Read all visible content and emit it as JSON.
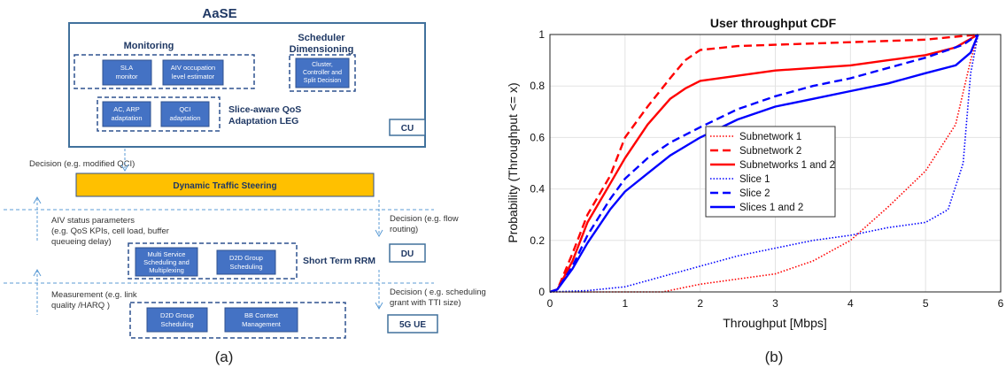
{
  "diagram": {
    "title": "AaSE",
    "monitoring": {
      "heading": "Monitoring",
      "sla_box": [
        "SLA",
        "monitor"
      ],
      "aiv_box": [
        "AIV occupation",
        "level estimator"
      ]
    },
    "scheduler": {
      "heading": [
        "Scheduler",
        "Dimensioning"
      ],
      "box": [
        "Cluster,",
        "Controller and",
        "Split Decision"
      ]
    },
    "qos": {
      "ac_arp_box": [
        "AC, ARP",
        "adaptation"
      ],
      "qci_box": [
        "QCI",
        "adaptation"
      ],
      "label": [
        "Slice-aware QoS",
        "Adaptation LEG"
      ]
    },
    "cu_label": "CU",
    "decision_qci": "Decision (e.g. modified QCI)",
    "dts_label": "Dynamic Traffic Steering",
    "aiv_status": [
      "AIV status parameters",
      "(e.g. QoS KPIs, cell load, buffer",
      "queueing delay)"
    ],
    "decision_flow": [
      "Decision (e.g. flow",
      "routing)"
    ],
    "rrm": {
      "multi_service_box": [
        "Multi Service",
        "Scheduling and",
        "Multiplexing"
      ],
      "d2d_box": [
        "D2D Group",
        "Scheduling"
      ],
      "label": "Short Term RRM"
    },
    "du_label": "DU",
    "measurement": [
      "Measurement (e.g. link",
      "quality /HARQ )"
    ],
    "decision_sched": [
      "Decision ( e.g. scheduling",
      "grant with TTI size)"
    ],
    "ue": {
      "d2d_box": [
        "D2D Group",
        "Scheduling"
      ],
      "bb_box": [
        "BB Context",
        "Management"
      ],
      "label": "5G UE"
    },
    "caption": "(a)"
  },
  "chart_caption": "(b)",
  "colors": {
    "box_blue": "#4472c4",
    "box_border": "#2f528f",
    "frame": "#41719c",
    "text_dark": "#1f3864",
    "dts_fill": "#ffc000",
    "red": "#ff0000",
    "blue": "#0000ff"
  },
  "chart_data": {
    "type": "line",
    "title": "User throughput CDF",
    "xlabel": "Throughput [Mbps]",
    "ylabel": "Probability (Throughput <= x)",
    "xlim": [
      0,
      6
    ],
    "ylim": [
      0,
      1
    ],
    "xticks": [
      0,
      1,
      2,
      3,
      4,
      5,
      6
    ],
    "yticks": [
      0,
      0.2,
      0.4,
      0.6,
      0.8,
      1
    ],
    "xtick_labels": [
      "0",
      "1",
      "2",
      "3",
      "4",
      "5",
      "6"
    ],
    "ytick_labels": [
      "0",
      "0.2",
      "0.4",
      "0.6",
      "0.8",
      "1"
    ],
    "grid": true,
    "legend": "center",
    "series": [
      {
        "name": "Subnetwork 1",
        "color": "#ff0000",
        "style": "dotted",
        "x": [
          0,
          1.0,
          1.5,
          2.0,
          2.5,
          3.0,
          3.5,
          4.0,
          4.5,
          5.0,
          5.4,
          5.6,
          5.7
        ],
        "y": [
          0,
          0.0,
          0.0,
          0.03,
          0.05,
          0.07,
          0.12,
          0.2,
          0.33,
          0.47,
          0.65,
          0.9,
          1.0
        ]
      },
      {
        "name": "Subnetwork 2",
        "color": "#ff0000",
        "style": "dashed",
        "x": [
          0,
          0.1,
          0.3,
          0.5,
          0.8,
          1.0,
          1.3,
          1.6,
          1.8,
          2.0,
          2.5,
          3.0,
          4.0,
          5.0,
          5.7
        ],
        "y": [
          0,
          0.01,
          0.15,
          0.3,
          0.45,
          0.6,
          0.72,
          0.83,
          0.9,
          0.94,
          0.955,
          0.96,
          0.97,
          0.98,
          1.0
        ]
      },
      {
        "name": "Subnetworks 1 and 2",
        "color": "#ff0000",
        "style": "solid",
        "x": [
          0,
          0.1,
          0.3,
          0.5,
          0.8,
          1.0,
          1.3,
          1.6,
          1.8,
          2.0,
          2.5,
          3.0,
          4.0,
          4.5,
          5.0,
          5.4,
          5.7
        ],
        "y": [
          0,
          0.01,
          0.12,
          0.27,
          0.42,
          0.52,
          0.65,
          0.75,
          0.79,
          0.82,
          0.84,
          0.86,
          0.88,
          0.9,
          0.92,
          0.95,
          1.0
        ]
      },
      {
        "name": "Slice 1",
        "color": "#0000ff",
        "style": "dotted",
        "x": [
          0,
          0.5,
          1.0,
          1.5,
          2.0,
          2.5,
          3.0,
          3.5,
          4.0,
          4.5,
          5.0,
          5.3,
          5.5,
          5.6,
          5.7
        ],
        "y": [
          0,
          0.005,
          0.02,
          0.06,
          0.1,
          0.14,
          0.17,
          0.2,
          0.22,
          0.25,
          0.27,
          0.32,
          0.5,
          0.85,
          1.0
        ]
      },
      {
        "name": "Slice 2",
        "color": "#0000ff",
        "style": "dashed",
        "x": [
          0,
          0.1,
          0.3,
          0.5,
          0.8,
          1.0,
          1.3,
          1.6,
          2.0,
          2.5,
          3.0,
          3.5,
          4.0,
          4.5,
          5.0,
          5.5,
          5.7
        ],
        "y": [
          0,
          0.01,
          0.1,
          0.22,
          0.36,
          0.44,
          0.52,
          0.58,
          0.64,
          0.71,
          0.76,
          0.8,
          0.83,
          0.87,
          0.91,
          0.96,
          1.0
        ]
      },
      {
        "name": "Slices 1 and 2",
        "color": "#0000ff",
        "style": "solid",
        "x": [
          0,
          0.1,
          0.3,
          0.5,
          0.8,
          1.0,
          1.3,
          1.6,
          2.0,
          2.5,
          3.0,
          3.5,
          4.0,
          4.5,
          5.0,
          5.4,
          5.6,
          5.7
        ],
        "y": [
          0,
          0.01,
          0.09,
          0.19,
          0.32,
          0.39,
          0.46,
          0.53,
          0.6,
          0.67,
          0.72,
          0.75,
          0.78,
          0.81,
          0.85,
          0.88,
          0.93,
          1.0
        ]
      }
    ]
  }
}
